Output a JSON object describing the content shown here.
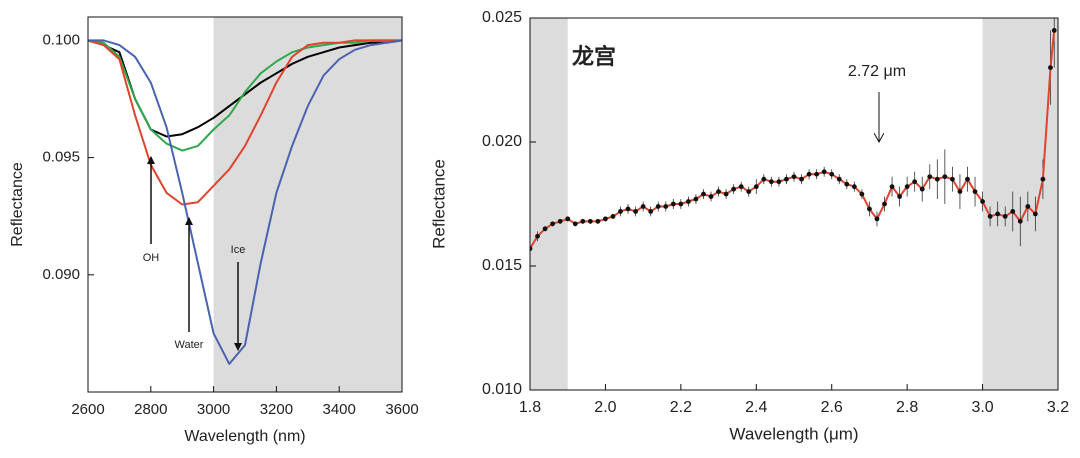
{
  "chart_data": [
    {
      "type": "line",
      "xlabel": "Wavelength (nm)",
      "ylabel": "Reflectance",
      "x": [
        2600,
        2650,
        2700,
        2750,
        2800,
        2850,
        2900,
        2950,
        3000,
        3050,
        3100,
        3150,
        3200,
        3250,
        3300,
        3350,
        3400,
        3450,
        3500,
        3550,
        3600
      ],
      "series": [
        {
          "color": "#000000",
          "values": [
            0.1,
            0.0998,
            0.0995,
            0.0975,
            0.0962,
            0.0959,
            0.096,
            0.0963,
            0.0967,
            0.0972,
            0.0977,
            0.0982,
            0.0986,
            0.099,
            0.0993,
            0.0995,
            0.0997,
            0.0998,
            0.0999,
            0.0999,
            0.1
          ]
        },
        {
          "color": "#2ea84a",
          "values": [
            0.1,
            0.0999,
            0.0993,
            0.0975,
            0.0962,
            0.0956,
            0.0953,
            0.0955,
            0.0962,
            0.0968,
            0.0978,
            0.0986,
            0.0991,
            0.0995,
            0.0997,
            0.0998,
            0.0999,
            0.0999,
            0.1,
            0.1,
            0.1
          ]
        },
        {
          "color": "#e0432e",
          "values": [
            0.1,
            0.0998,
            0.0992,
            0.0968,
            0.0947,
            0.0935,
            0.093,
            0.0931,
            0.0938,
            0.0945,
            0.0955,
            0.0968,
            0.0982,
            0.0993,
            0.0998,
            0.0999,
            0.0999,
            0.1,
            0.1,
            0.1,
            0.1
          ]
        },
        {
          "color": "#4a62b0",
          "values": [
            0.1,
            0.1,
            0.0998,
            0.0993,
            0.0982,
            0.0963,
            0.0935,
            0.0905,
            0.0875,
            0.0862,
            0.087,
            0.0905,
            0.0935,
            0.0955,
            0.0972,
            0.0985,
            0.0992,
            0.0996,
            0.0998,
            0.0999,
            0.1
          ]
        }
      ],
      "xlim": [
        2600,
        3600
      ],
      "xticks": [
        2600,
        2800,
        3000,
        3200,
        3400,
        3600
      ],
      "ylim": [
        0.085,
        0.101
      ],
      "yticks": [
        {
          "value": 0.1,
          "label": "0.100"
        },
        0.095,
        {
          "value": 0.09,
          "label": "0.090"
        }
      ],
      "shaded_regions": [
        [
          3000,
          3600
        ]
      ],
      "annotations": [
        "OH",
        "Water",
        "Ice"
      ]
    },
    {
      "type": "line",
      "xlabel": "Wavelength (μm)",
      "ylabel": "Reflectance",
      "x": [
        1.8,
        1.82,
        1.84,
        1.86,
        1.88,
        1.9,
        1.92,
        1.94,
        1.96,
        1.98,
        2.0,
        2.02,
        2.04,
        2.06,
        2.08,
        2.1,
        2.12,
        2.14,
        2.16,
        2.18,
        2.2,
        2.22,
        2.24,
        2.26,
        2.28,
        2.3,
        2.32,
        2.34,
        2.36,
        2.38,
        2.4,
        2.42,
        2.44,
        2.46,
        2.48,
        2.5,
        2.52,
        2.54,
        2.56,
        2.58,
        2.6,
        2.62,
        2.64,
        2.66,
        2.68,
        2.7,
        2.72,
        2.74,
        2.76,
        2.78,
        2.8,
        2.82,
        2.84,
        2.86,
        2.88,
        2.9,
        2.92,
        2.94,
        2.96,
        2.98,
        3.0,
        3.02,
        3.04,
        3.06,
        3.08,
        3.1,
        3.12,
        3.14,
        3.16,
        3.18,
        3.19
      ],
      "series": [
        {
          "color": "#e0432e",
          "marker_color": "#111111",
          "values": [
            0.0157,
            0.0162,
            0.0165,
            0.0167,
            0.0168,
            0.0169,
            0.0167,
            0.0168,
            0.0168,
            0.0168,
            0.0169,
            0.017,
            0.0172,
            0.0173,
            0.0172,
            0.0174,
            0.0172,
            0.0174,
            0.0174,
            0.0175,
            0.0175,
            0.0176,
            0.0177,
            0.0179,
            0.0178,
            0.018,
            0.0179,
            0.0181,
            0.0182,
            0.018,
            0.0182,
            0.0185,
            0.0184,
            0.0184,
            0.0185,
            0.0186,
            0.0185,
            0.0187,
            0.0187,
            0.0188,
            0.0187,
            0.0185,
            0.0183,
            0.0182,
            0.0179,
            0.0173,
            0.0169,
            0.0175,
            0.0182,
            0.0178,
            0.0182,
            0.0184,
            0.0181,
            0.0186,
            0.0185,
            0.0186,
            0.0185,
            0.018,
            0.0185,
            0.018,
            0.0176,
            0.017,
            0.0171,
            0.017,
            0.0172,
            0.0168,
            0.0174,
            0.0171,
            0.0185,
            0.023,
            0.0245
          ],
          "errors": [
            0.0002,
            0.0002,
            0.0001,
            0.0001,
            0.0001,
            0.0001,
            0.0001,
            0.0001,
            0.0001,
            0.0001,
            0.0001,
            0.0001,
            0.0002,
            0.0002,
            0.0002,
            0.0002,
            0.0002,
            0.0002,
            0.0002,
            0.0002,
            0.0002,
            0.0002,
            0.0002,
            0.0002,
            0.0002,
            0.0002,
            0.0002,
            0.0002,
            0.0002,
            0.0002,
            0.0003,
            0.0002,
            0.0002,
            0.0002,
            0.0002,
            0.0002,
            0.0002,
            0.0002,
            0.0002,
            0.0002,
            0.0002,
            0.0002,
            0.0002,
            0.0002,
            0.0002,
            0.0003,
            0.0003,
            0.0003,
            0.0004,
            0.0004,
            0.0004,
            0.0004,
            0.0005,
            0.0005,
            0.0008,
            0.0011,
            0.0005,
            0.0007,
            0.0005,
            0.0006,
            0.0004,
            0.0004,
            0.0005,
            0.0004,
            0.0008,
            0.001,
            0.0006,
            0.0007,
            0.0008,
            0.0015,
            0.0015
          ]
        }
      ],
      "xlim": [
        1.8,
        3.2
      ],
      "xticks": [
        1.8,
        {
          "value": 2,
          "label": "2.0"
        },
        2.2,
        2.4,
        2.6,
        2.8,
        {
          "value": 3,
          "label": "3.0"
        },
        3.2
      ],
      "ylim": [
        0.01,
        0.025
      ],
      "yticks": [
        {
          "value": 0.01,
          "label": "0.010"
        },
        0.015,
        {
          "value": 0.02,
          "label": "0.020"
        },
        0.025
      ],
      "shaded_regions": [
        [
          1.8,
          1.9
        ],
        [
          3.0,
          3.2
        ]
      ],
      "annotations": [
        "龙宫",
        "2.72 μm"
      ]
    }
  ]
}
